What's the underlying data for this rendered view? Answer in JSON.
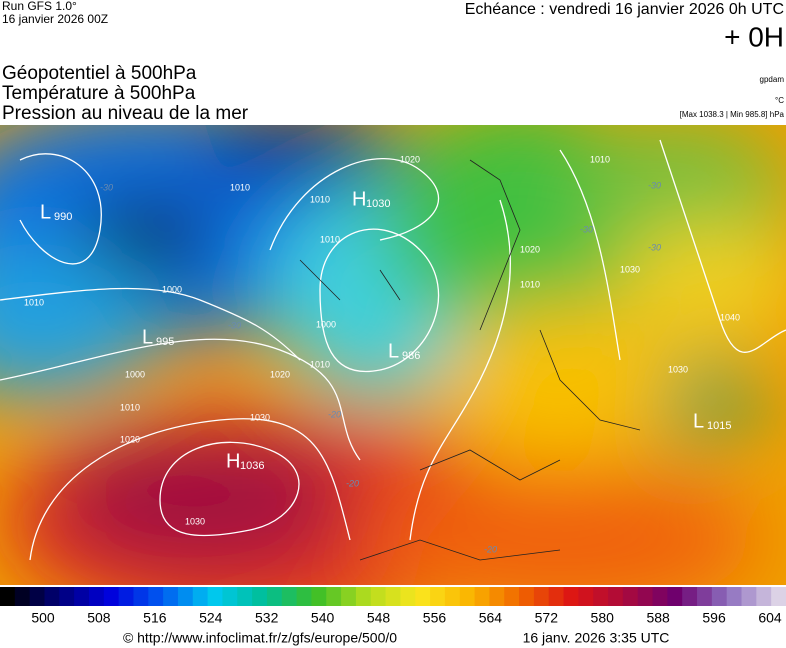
{
  "header": {
    "run": "Run GFS 1.0°",
    "date": "16 janvier 2026 00Z",
    "echeance": "Echéance : vendredi 16 janvier 2026 0h UTC",
    "offset": "+ 0H",
    "titles": [
      "Géopotentiel à 500hPa",
      "Température à 500hPa",
      "Pression au niveau de la mer"
    ],
    "unit_geo": "gpdam",
    "unit_temp": "°C",
    "maxmin": "[Max 1038.3 | Min 985.8] hPa"
  },
  "map": {
    "centers": [
      {
        "letter": "L",
        "value": "990"
      },
      {
        "letter": "H",
        "value": "1030"
      },
      {
        "letter": "L",
        "value": "986"
      },
      {
        "letter": "L",
        "value": "995"
      },
      {
        "letter": "H",
        "value": "1036"
      },
      {
        "letter": "L",
        "value": "1015"
      }
    ],
    "isobars": [
      "1010",
      "1010",
      "1020",
      "1010",
      "1000",
      "1010",
      "1000",
      "1010",
      "1020",
      "1030",
      "1020",
      "1030",
      "1010",
      "1000",
      "1010",
      "1030",
      "1040",
      "1030",
      "1020",
      "1010"
    ],
    "isotherms": [
      "-30",
      "-30",
      "-20",
      "-30",
      "-30",
      "-20",
      "-20",
      "-30"
    ]
  },
  "colorbar": {
    "ticks": [
      500,
      508,
      516,
      524,
      532,
      540,
      548,
      556,
      564,
      572,
      580,
      588,
      596,
      604
    ]
  },
  "footer": {
    "url": "© http://www.infoclimat.fr/z/gfs/europe/500/0",
    "time": "16 janv. 2026  3:35 UTC"
  }
}
